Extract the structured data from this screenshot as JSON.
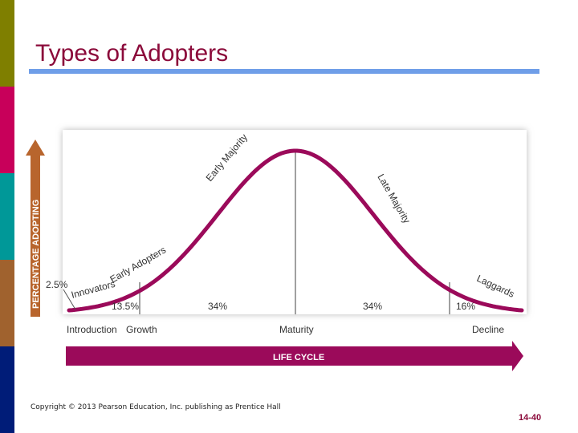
{
  "slide": {
    "title": "Types of Adopters",
    "copyright": "Copyright © 2013 Pearson Education, Inc. publishing as Prentice Hall",
    "page_number": "14-40"
  },
  "colors": {
    "accent_maroon": "#9b0a5a",
    "title_color": "#8b0a3a",
    "title_rule": "#6f9ee8",
    "y_arrow": "#b8652d",
    "side_bands": [
      "#7f7f00",
      "#c8005a",
      "#009898",
      "#a0622e",
      "#001c78"
    ]
  },
  "chart_data": {
    "type": "area",
    "ylabel": "PERCENTAGE ADOPTING",
    "xlabel": "LIFE CYCLE",
    "stages": [
      "Introduction",
      "Growth",
      "Maturity",
      "Decline"
    ],
    "adopter_groups": [
      {
        "name": "Innovators",
        "percent_label": "2.5%"
      },
      {
        "name": "Early Adopters",
        "percent_label": "13.5%"
      },
      {
        "name": "Early Majority",
        "percent_label": "34%"
      },
      {
        "name": "Late Majority",
        "percent_label": "34%"
      },
      {
        "name": "Laggards",
        "percent_label": "16%"
      }
    ]
  }
}
